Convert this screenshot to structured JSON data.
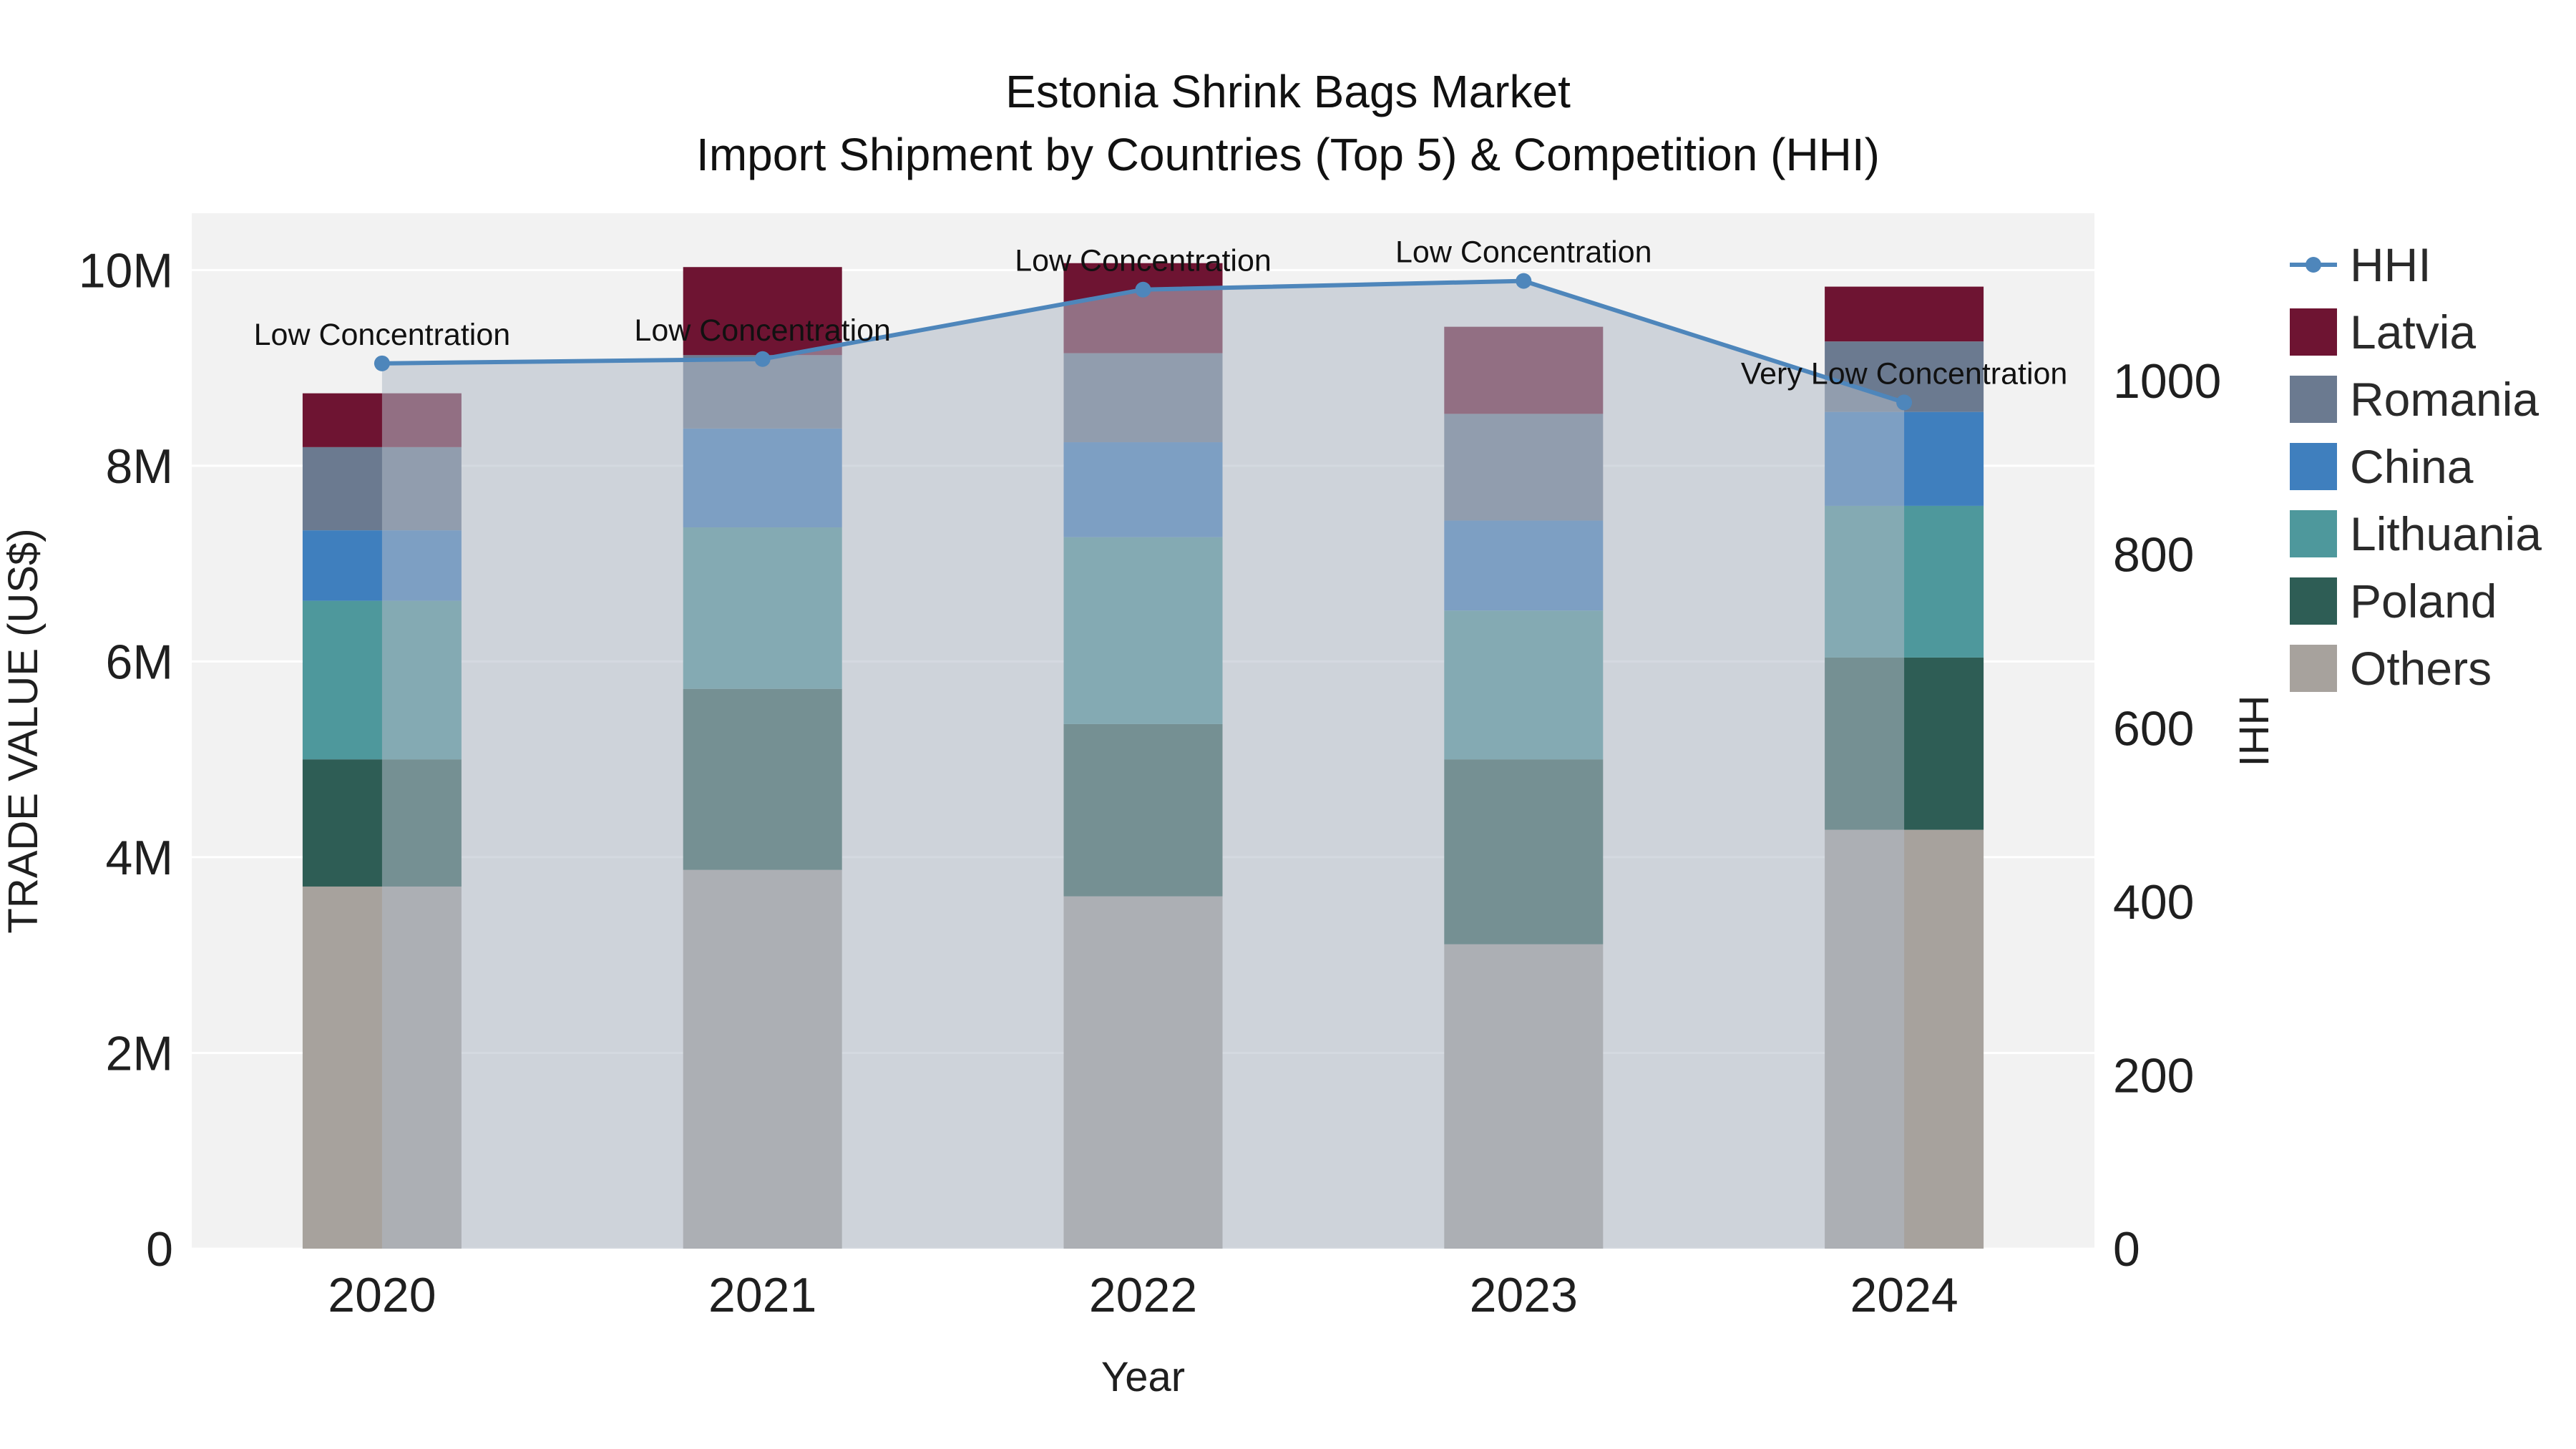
{
  "title": {
    "line1": "Estonia Shrink Bags Market",
    "line2": "Import Shipment by Countries (Top 5) & Competition (HHI)"
  },
  "chart_data": {
    "type": "bar+line",
    "x_label": "Year",
    "categories": [
      "2020",
      "2021",
      "2022",
      "2023",
      "2024"
    ],
    "bar_series": [
      {
        "name": "Others",
        "color": "#a7a29d",
        "values": [
          3700000,
          3870000,
          3600000,
          3110000,
          4280000
        ]
      },
      {
        "name": "Poland",
        "color": "#2e5d55",
        "values": [
          1300000,
          1850000,
          1760000,
          1890000,
          1760000
        ]
      },
      {
        "name": "Lithuania",
        "color": "#4e989c",
        "values": [
          1620000,
          1650000,
          1910000,
          1520000,
          1550000
        ]
      },
      {
        "name": "China",
        "color": "#3f7fbe",
        "values": [
          720000,
          1010000,
          970000,
          920000,
          960000
        ]
      },
      {
        "name": "Romania",
        "color": "#6b7a90",
        "values": [
          850000,
          750000,
          910000,
          1090000,
          720000
        ]
      },
      {
        "name": "Latvia",
        "color": "#6e1432",
        "values": [
          550000,
          900000,
          920000,
          890000,
          560000
        ]
      }
    ],
    "line_series": {
      "name": "HHI",
      "color": "#4e86bb",
      "fill_color": "rgba(176,186,199,0.55)",
      "values": [
        1020,
        1025,
        1105,
        1115,
        975
      ]
    },
    "annotations": [
      "Low Concentration",
      "Low Concentration",
      "Low Concentration",
      "Low Concentration",
      "Very Low Concentration"
    ],
    "left_axis": {
      "title": "TRADE VALUE (US$)",
      "max": 10580000,
      "ticks": [
        {
          "v": 0,
          "label": "0"
        },
        {
          "v": 2000000,
          "label": "2M"
        },
        {
          "v": 4000000,
          "label": "4M"
        },
        {
          "v": 6000000,
          "label": "6M"
        },
        {
          "v": 8000000,
          "label": "8M"
        },
        {
          "v": 10000000,
          "label": "10M"
        }
      ]
    },
    "right_axis": {
      "title": "HHI",
      "max": 1193,
      "ticks": [
        {
          "v": 0,
          "label": "0"
        },
        {
          "v": 200,
          "label": "200"
        },
        {
          "v": 400,
          "label": "400"
        },
        {
          "v": 600,
          "label": "600"
        },
        {
          "v": 800,
          "label": "800"
        },
        {
          "v": 1000,
          "label": "1000"
        }
      ]
    },
    "legend_order": [
      "HHI",
      "Latvia",
      "Romania",
      "China",
      "Lithuania",
      "Poland",
      "Others"
    ]
  }
}
